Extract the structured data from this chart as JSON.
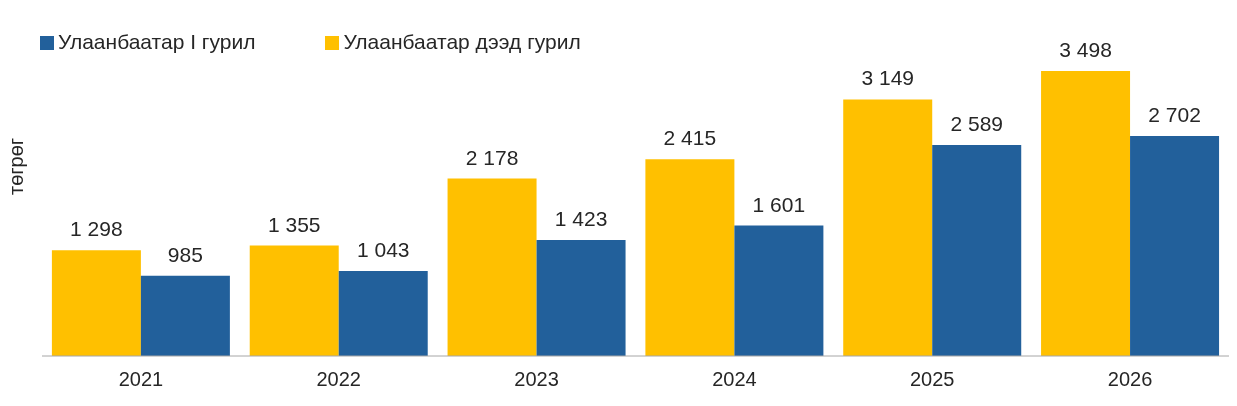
{
  "chart_data": {
    "type": "bar",
    "ylabel": "төгрөг",
    "categories": [
      "2021",
      "2022",
      "2023",
      "2024",
      "2025",
      "2026"
    ],
    "series": [
      {
        "name": "Улаанбаатар дээд гурил",
        "color": "#ffc000",
        "values": [
          1298,
          1355,
          2178,
          2415,
          3149,
          3498
        ],
        "value_labels": [
          "1 298",
          "1 355",
          "2 178",
          "2 415",
          "3 149",
          "3 498"
        ]
      },
      {
        "name": "Улаанбаатар I гурил",
        "color": "#22609b",
        "values": [
          985,
          1043,
          1423,
          1601,
          2589,
          2702
        ],
        "value_labels": [
          "985",
          "1 043",
          "1 423",
          "1 601",
          "2 589",
          "2 702"
        ]
      }
    ],
    "legend": "top left",
    "grid": false
  }
}
